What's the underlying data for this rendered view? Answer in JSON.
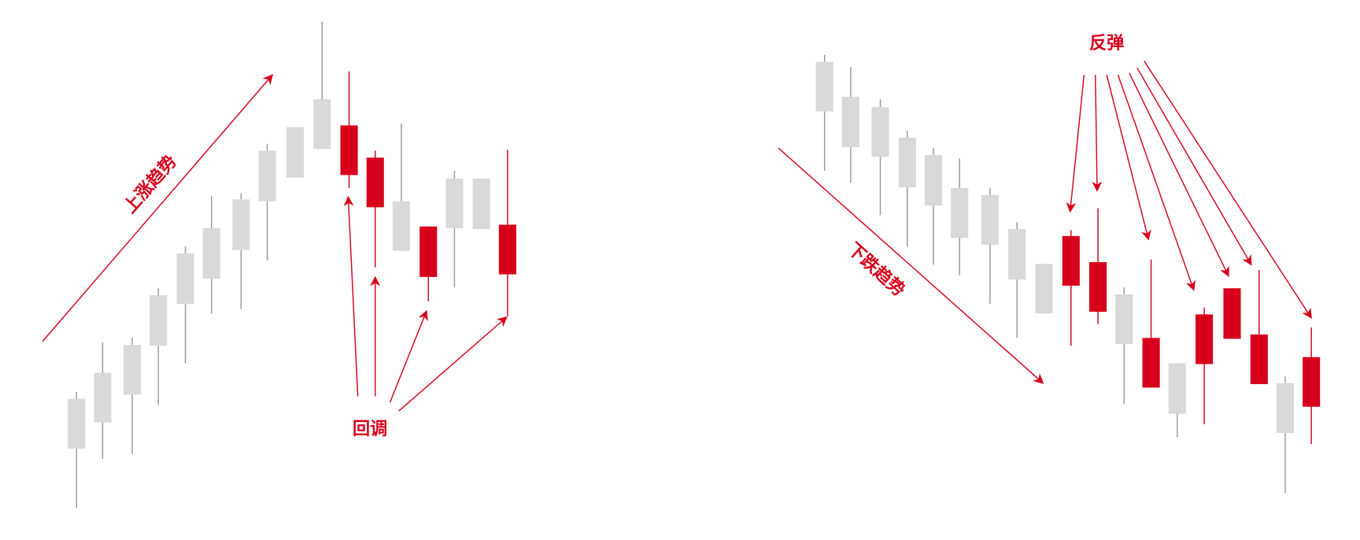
{
  "left": {
    "trend_label": "上涨趋势",
    "pullback_label": "回调"
  },
  "right": {
    "trend_label": "下跌趋势",
    "rebound_label": "反弹"
  }
}
